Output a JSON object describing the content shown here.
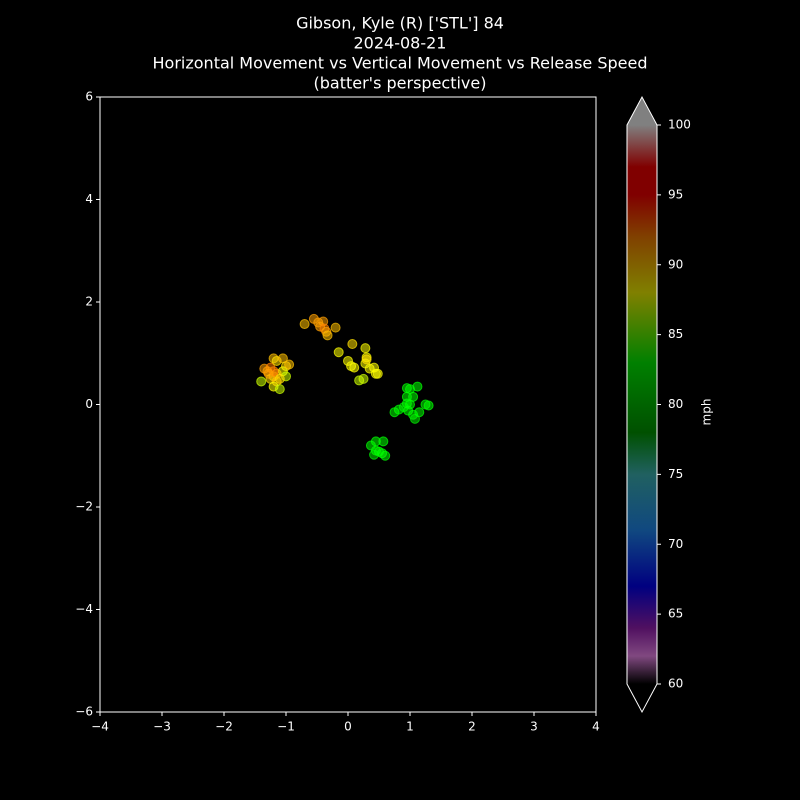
{
  "chart_data": {
    "type": "scatter",
    "title": [
      "Gibson, Kyle (R) ['STL'] 84",
      "2024-08-21",
      "Horizontal Movement vs Vertical Movement vs Release Speed",
      "(batter's perspective)"
    ],
    "x": [
      -1.35,
      -1.25,
      -1.2,
      -1.15,
      -1.05,
      -1.0,
      -1.3,
      -1.2,
      -1.25,
      -1.15,
      -1.2,
      -1.1,
      -1.15,
      -1.05,
      -1.0,
      -1.4,
      -1.2,
      -1.1,
      -0.95,
      -1.28,
      -0.7,
      -0.55,
      -0.48,
      -0.45,
      -0.4,
      -0.38,
      -0.35,
      -0.33,
      -0.2,
      -0.15,
      0.07,
      0.0,
      0.05,
      0.1,
      0.18,
      0.25,
      0.28,
      0.3,
      0.28,
      0.35,
      0.42,
      0.45,
      0.48,
      0.3,
      0.75,
      0.82,
      0.95,
      1.0,
      1.12,
      0.95,
      1.05,
      0.9,
      0.97,
      1.0,
      1.05,
      1.08,
      1.15,
      1.25,
      1.3,
      0.95,
      0.37,
      0.45,
      0.57,
      0.42,
      0.5,
      0.55,
      0.6,
      0.45
    ],
    "y": [
      0.7,
      0.72,
      0.9,
      0.85,
      0.9,
      0.75,
      0.65,
      0.55,
      0.5,
      0.45,
      0.35,
      0.3,
      0.6,
      0.65,
      0.55,
      0.45,
      0.65,
      0.5,
      0.78,
      0.6,
      1.57,
      1.67,
      1.6,
      1.52,
      1.62,
      1.48,
      1.42,
      1.35,
      1.5,
      1.02,
      1.18,
      0.85,
      0.75,
      0.72,
      0.47,
      0.5,
      1.1,
      0.92,
      0.8,
      0.7,
      0.72,
      0.6,
      0.6,
      0.88,
      -0.15,
      -0.1,
      0.32,
      0.3,
      0.35,
      0.15,
      0.15,
      -0.05,
      -0.12,
      0.0,
      -0.2,
      -0.28,
      -0.15,
      0.0,
      -0.02,
      0.02,
      -0.8,
      -0.72,
      -0.72,
      -0.98,
      -0.92,
      -0.95,
      -1.0,
      -0.9
    ],
    "speed": [
      91,
      92,
      90,
      89,
      90,
      89,
      91,
      90,
      89,
      90,
      88,
      87,
      91,
      88,
      87,
      87,
      92,
      89,
      90,
      91,
      90,
      91,
      91,
      91,
      91,
      92,
      91,
      90,
      90,
      88,
      89,
      88,
      88,
      88,
      87,
      87,
      88,
      88,
      88,
      88,
      88,
      88,
      88,
      89,
      83,
      83,
      83,
      83,
      83,
      83,
      83,
      82,
      83,
      83,
      83,
      82,
      83,
      83,
      83,
      83,
      83,
      83,
      83,
      82,
      83,
      83,
      83,
      83
    ],
    "xlim": [
      -4,
      4
    ],
    "ylim": [
      -6,
      6
    ],
    "xticks": [
      {
        "value": -4,
        "label": "−4"
      },
      {
        "value": -3,
        "label": "−3"
      },
      {
        "value": -2,
        "label": "−2"
      },
      {
        "value": -1,
        "label": "−1"
      },
      0,
      1,
      2,
      3,
      4
    ],
    "yticks": [
      {
        "value": -6,
        "label": "−6"
      },
      {
        "value": -4,
        "label": "−4"
      },
      {
        "value": -2,
        "label": "−2"
      },
      0,
      2,
      4,
      6
    ],
    "colorbar_label": "mph",
    "clim": [
      60,
      100
    ],
    "cticks": [
      60,
      65,
      70,
      75,
      80,
      85,
      90,
      95,
      100
    ],
    "colormap": [
      {
        "value": 60,
        "color": "#000000"
      },
      {
        "value": 62,
        "color": "#ff90ff"
      },
      {
        "value": 64,
        "color": "#a020c0"
      },
      {
        "value": 67,
        "color": "#0000ff"
      },
      {
        "value": 71,
        "color": "#2090ff"
      },
      {
        "value": 75,
        "color": "#40c0c0"
      },
      {
        "value": 78,
        "color": "#00a000"
      },
      {
        "value": 83,
        "color": "#00ff00"
      },
      {
        "value": 88,
        "color": "#ffff00"
      },
      {
        "value": 92,
        "color": "#ff8000"
      },
      {
        "value": 95,
        "color": "#ff0000"
      },
      {
        "value": 97,
        "color": "#ff0000"
      },
      {
        "value": 100,
        "color": "#ffffff"
      }
    ],
    "over_color": "#808080",
    "under_color": "#000000"
  }
}
